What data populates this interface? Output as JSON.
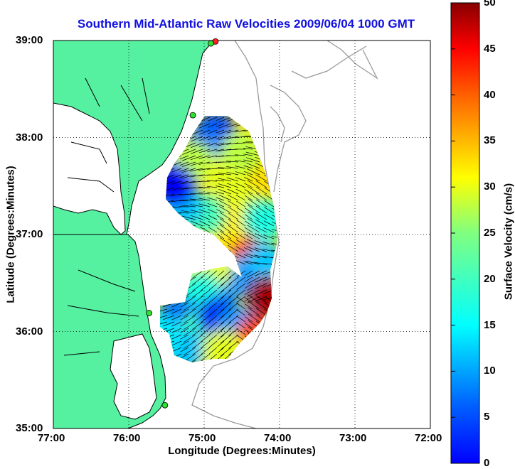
{
  "title": "Southern Mid-Atlantic Raw Velocities 2009/06/04 1000 GMT",
  "axes": {
    "xlabel": "Longitude (Degrees:Minutes)",
    "ylabel": "Latitude (Degrees:Minutes)",
    "x_ticks": [
      "77:00",
      "76:00",
      "75:00",
      "74:00",
      "73:00",
      "72:00"
    ],
    "y_ticks": [
      "39:00",
      "38:00",
      "37:00",
      "36:00",
      "35:00"
    ],
    "xlim": [
      -77,
      -72
    ],
    "ylim": [
      35,
      39
    ],
    "grid": true
  },
  "colorbar": {
    "label": "Surface Velocity (cm/s)",
    "ticks": [
      "50",
      "45",
      "40",
      "35",
      "30",
      "25",
      "20",
      "15",
      "10",
      "5",
      "0"
    ],
    "range": [
      0,
      50
    ],
    "colormap": "jet"
  },
  "colors": {
    "land": "#55f0a0",
    "coastline": "#000000",
    "bathymetry": "#9a9a9a",
    "title": "#1010e0"
  },
  "stations": [
    {
      "lon": -74.85,
      "lat": 38.99,
      "color": "#ff2020"
    },
    {
      "lon": -74.91,
      "lat": 38.97,
      "color": "#30e030"
    },
    {
      "lon": -75.15,
      "lat": 38.23,
      "color": "#30e030"
    },
    {
      "lon": -75.73,
      "lat": 36.19,
      "color": "#30e030"
    },
    {
      "lon": -75.52,
      "lat": 35.24,
      "color": "#30e030"
    }
  ],
  "velocity_patches": [
    {
      "lon": -74.85,
      "lat": 38.05,
      "speed": 10
    },
    {
      "lon": -75.0,
      "lat": 37.9,
      "speed": 12
    },
    {
      "lon": -75.3,
      "lat": 37.65,
      "speed": 8
    },
    {
      "lon": -75.15,
      "lat": 37.75,
      "speed": 28
    },
    {
      "lon": -74.7,
      "lat": 37.6,
      "speed": 30
    },
    {
      "lon": -74.5,
      "lat": 37.85,
      "speed": 28
    },
    {
      "lon": -74.5,
      "lat": 37.3,
      "speed": 30
    },
    {
      "lon": -74.45,
      "lat": 36.95,
      "speed": 44
    },
    {
      "lon": -74.7,
      "lat": 37.1,
      "speed": 32
    },
    {
      "lon": -75.0,
      "lat": 37.2,
      "speed": 22
    },
    {
      "lon": -75.3,
      "lat": 37.3,
      "speed": 16
    },
    {
      "lon": -75.4,
      "lat": 37.5,
      "speed": 6
    },
    {
      "lon": -74.2,
      "lat": 37.15,
      "speed": 20
    },
    {
      "lon": -74.2,
      "lat": 36.7,
      "speed": 16
    },
    {
      "lon": -74.6,
      "lat": 36.55,
      "speed": 14
    },
    {
      "lon": -74.9,
      "lat": 36.65,
      "speed": 30
    },
    {
      "lon": -75.05,
      "lat": 36.4,
      "speed": 20
    },
    {
      "lon": -75.35,
      "lat": 36.15,
      "speed": 12
    },
    {
      "lon": -75.05,
      "lat": 36.0,
      "speed": 22
    },
    {
      "lon": -74.8,
      "lat": 36.15,
      "speed": 8
    },
    {
      "lon": -74.55,
      "lat": 36.05,
      "speed": 14
    },
    {
      "lon": -74.3,
      "lat": 35.95,
      "speed": 40
    },
    {
      "lon": -74.15,
      "lat": 36.35,
      "speed": 48
    },
    {
      "lon": -75.25,
      "lat": 35.8,
      "speed": 16
    },
    {
      "lon": -74.75,
      "lat": 35.8,
      "speed": 30
    },
    {
      "lon": -75.6,
      "lat": 35.95,
      "speed": 18
    }
  ]
}
